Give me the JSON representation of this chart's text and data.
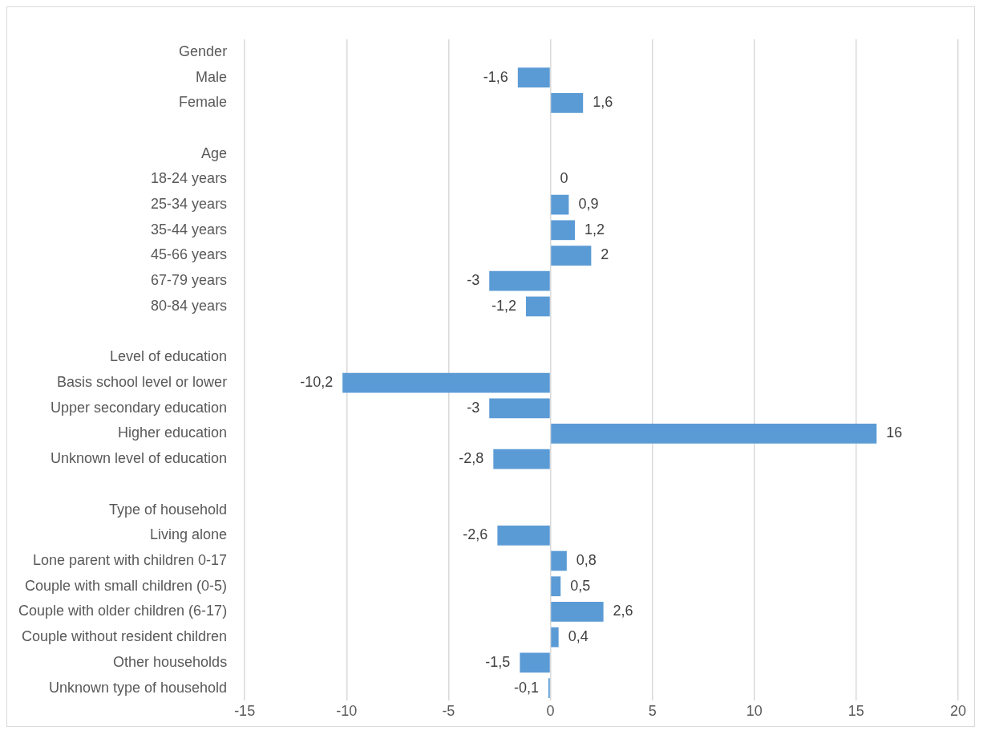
{
  "chart_data": {
    "type": "bar",
    "orientation": "horizontal",
    "categories": [
      "Gender",
      "Male",
      "Female",
      null,
      "Age",
      "18-24 years",
      "25-34 years",
      "35-44 years",
      "45-66 years",
      "67-79 years",
      "80-84 years",
      null,
      "Level of education",
      "Basis school level or lower",
      "Upper secondary education",
      "Higher education",
      "Unknown level of education",
      null,
      "Type of household",
      "Living alone",
      "Lone parent with children 0-17",
      "Couple with small children (0-5)",
      "Couple with older children (6-17)",
      "Couple without resident children",
      "Other households",
      "Unknown type of household"
    ],
    "values": [
      null,
      -1.6,
      1.6,
      null,
      null,
      0,
      0.9,
      1.2,
      2,
      -3,
      -1.2,
      null,
      null,
      -10.2,
      -3,
      16,
      -2.8,
      null,
      null,
      -2.6,
      0.8,
      0.5,
      2.6,
      0.4,
      -1.5,
      -0.1
    ],
    "value_labels": [
      null,
      "-1,6",
      "1,6",
      null,
      null,
      "0",
      "0,9",
      "1,2",
      "2",
      "-3",
      "-1,2",
      null,
      null,
      "-10,2",
      "-3",
      "16",
      "-2,8",
      null,
      null,
      "-2,6",
      "0,8",
      "0,5",
      "2,6",
      "0,4",
      "-1,5",
      "-0,1"
    ],
    "color": "#5b9bd5",
    "xlim": [
      -15,
      20
    ],
    "xticks": [
      -15,
      -10,
      -5,
      0,
      5,
      10,
      15,
      20
    ],
    "grid": "x"
  }
}
